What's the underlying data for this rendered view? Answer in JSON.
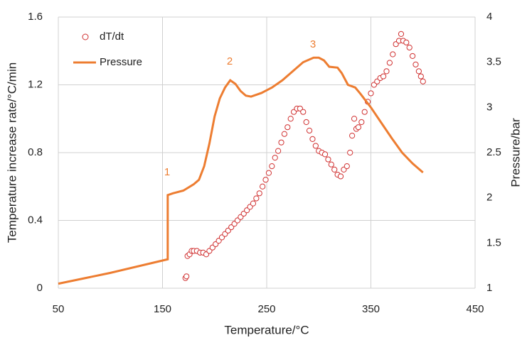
{
  "chart_data": {
    "type": "combo",
    "xlabel": "Temperature/°C",
    "ylabel": "Temperature increase rate/°C/min",
    "y2label": "Pressure/bar",
    "annotations": [
      "1",
      "2",
      "3"
    ],
    "xlim": [
      50,
      450
    ],
    "xticks": [
      50,
      150,
      250,
      350,
      450
    ],
    "ylim": [
      0,
      1.6
    ],
    "yticks": [
      0,
      0.4,
      0.8,
      1.2,
      1.6
    ],
    "y2lim": [
      1,
      4
    ],
    "y2ticks": [
      1,
      1.5,
      2,
      2.5,
      3,
      3.5,
      4
    ],
    "grid": true,
    "legend": "upper left",
    "series": [
      {
        "name": "dT/dt",
        "type": "scatter",
        "color": "#d03030",
        "x": [
          172,
          173,
          174,
          176,
          178,
          180,
          183,
          186,
          189,
          192,
          195,
          198,
          201,
          204,
          207,
          210,
          213,
          216,
          219,
          222,
          225,
          228,
          231,
          234,
          237,
          240,
          243,
          246,
          249,
          252,
          255,
          258,
          261,
          264,
          267,
          270,
          273,
          276,
          279,
          282,
          285,
          288,
          291,
          294,
          297,
          300,
          303,
          306,
          309,
          312,
          315,
          318,
          321,
          324,
          327,
          330,
          332,
          334,
          336,
          338,
          341,
          344,
          347,
          350,
          353,
          356,
          359,
          362,
          365,
          368,
          371,
          374,
          377,
          379,
          381,
          384,
          387,
          390,
          393,
          396,
          398,
          400
        ],
        "values": [
          0.06,
          0.07,
          0.19,
          0.2,
          0.22,
          0.22,
          0.22,
          0.21,
          0.21,
          0.2,
          0.22,
          0.24,
          0.26,
          0.28,
          0.3,
          0.32,
          0.34,
          0.36,
          0.38,
          0.4,
          0.42,
          0.44,
          0.46,
          0.48,
          0.5,
          0.53,
          0.56,
          0.6,
          0.64,
          0.68,
          0.72,
          0.77,
          0.81,
          0.86,
          0.91,
          0.95,
          1.0,
          1.04,
          1.06,
          1.06,
          1.04,
          0.98,
          0.93,
          0.88,
          0.84,
          0.81,
          0.8,
          0.79,
          0.76,
          0.73,
          0.7,
          0.67,
          0.66,
          0.7,
          0.72,
          0.8,
          0.9,
          1.0,
          0.94,
          0.95,
          0.98,
          1.04,
          1.1,
          1.15,
          1.2,
          1.22,
          1.24,
          1.25,
          1.28,
          1.33,
          1.38,
          1.44,
          1.46,
          1.5,
          1.46,
          1.45,
          1.42,
          1.37,
          1.32,
          1.28,
          1.25,
          1.22
        ]
      },
      {
        "name": "Pressure",
        "type": "line",
        "axis": "y2",
        "color": "#ed7d31",
        "x": [
          50,
          100,
          155,
          155,
          160,
          170,
          180,
          185,
          190,
          195,
          200,
          205,
          210,
          215,
          220,
          225,
          230,
          235,
          245,
          255,
          265,
          275,
          285,
          295,
          300,
          305,
          310,
          318,
          322,
          328,
          335,
          340,
          350,
          360,
          370,
          380,
          390,
          400
        ],
        "values": [
          1.05,
          1.17,
          1.32,
          2.03,
          2.05,
          2.08,
          2.15,
          2.2,
          2.35,
          2.6,
          2.9,
          3.1,
          3.22,
          3.3,
          3.26,
          3.18,
          3.13,
          3.12,
          3.16,
          3.22,
          3.3,
          3.4,
          3.5,
          3.55,
          3.55,
          3.52,
          3.45,
          3.44,
          3.38,
          3.25,
          3.22,
          3.15,
          3.0,
          2.83,
          2.66,
          2.5,
          2.38,
          2.28
        ]
      }
    ]
  }
}
